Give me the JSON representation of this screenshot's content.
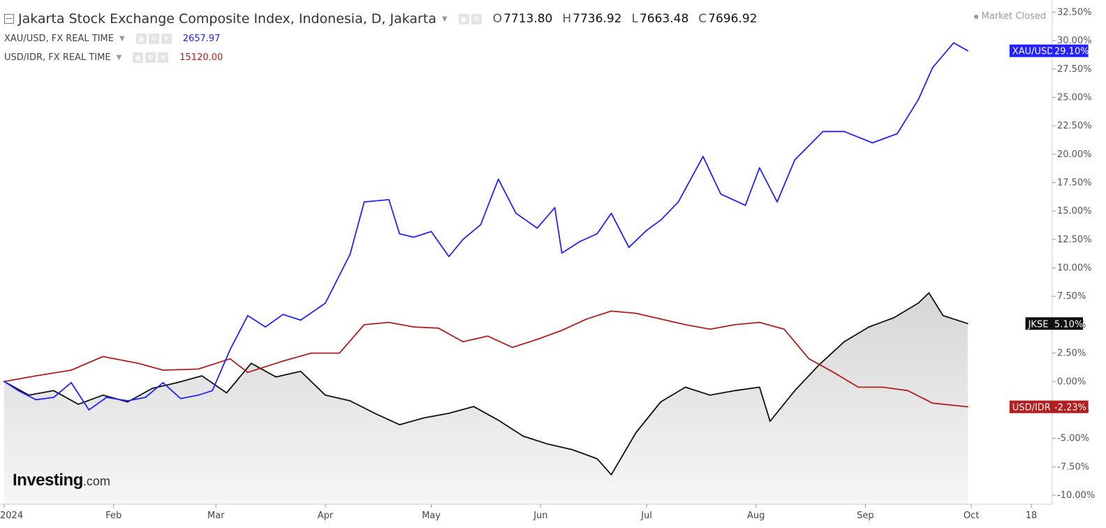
{
  "header": {
    "title": "Jakarta Stock Exchange Composite Index, Indonesia, D, Jakarta",
    "ohlc": [
      {
        "label": "O",
        "value": "7713.80"
      },
      {
        "label": "H",
        "value": "7736.92"
      },
      {
        "label": "L",
        "value": "7663.48"
      },
      {
        "label": "C",
        "value": "7696.92"
      }
    ],
    "market_status": "Market Closed",
    "overlays": [
      {
        "name": "XAU/USD, FX REAL TIME",
        "value": "2657.97",
        "color": "#2222ff"
      },
      {
        "name": "USD/IDR, FX REAL TIME",
        "value": "15120.00",
        "color": "#b01e1e"
      }
    ]
  },
  "logo": {
    "main": "Investing",
    "suffix": ".com"
  },
  "chart_data": {
    "type": "line",
    "y_unit": "%",
    "ylim": [
      -10.8,
      33.2
    ],
    "y_ticks": [
      32.5,
      30.0,
      27.5,
      25.0,
      22.5,
      20.0,
      17.5,
      15.0,
      12.5,
      10.0,
      7.5,
      5.0,
      2.5,
      0.0,
      -2.5,
      -5.0,
      -7.5,
      -10.0
    ],
    "y_tick_labels": [
      "32.50%",
      "30.00%",
      "27.50%",
      "25.00%",
      "22.50%",
      "20.00%",
      "17.50%",
      "15.00%",
      "12.50%",
      "10.00%",
      "7.50%",
      "5.00%",
      "2.50%",
      "0.00%",
      "-2.50%",
      "-5.00%",
      "-7.50%",
      "-10.00%"
    ],
    "x_ticks": [
      {
        "label": "2024",
        "date": "2024-01-01"
      },
      {
        "label": "Feb",
        "date": "2024-02-01"
      },
      {
        "label": "Mar",
        "date": "2024-03-01"
      },
      {
        "label": "Apr",
        "date": "2024-04-01"
      },
      {
        "label": "May",
        "date": "2024-05-01"
      },
      {
        "label": "Jun",
        "date": "2024-06-01"
      },
      {
        "label": "Jul",
        "date": "2024-07-01"
      },
      {
        "label": "Aug",
        "date": "2024-08-01"
      },
      {
        "label": "Sep",
        "date": "2024-09-01"
      },
      {
        "label": "Oct",
        "date": "2024-10-01"
      },
      {
        "label": "18",
        "date": "2024-10-18"
      }
    ],
    "grid": false,
    "series": [
      {
        "name": "XAU/USD",
        "color": "#2222ff",
        "last_label": "29.10%",
        "points": [
          [
            "2024-01-01",
            0.0
          ],
          [
            "2024-01-05",
            -0.8
          ],
          [
            "2024-01-10",
            -1.6
          ],
          [
            "2024-01-15",
            -1.4
          ],
          [
            "2024-01-20",
            -0.1
          ],
          [
            "2024-01-25",
            -2.5
          ],
          [
            "2024-01-30",
            -1.4
          ],
          [
            "2024-02-05",
            -1.7
          ],
          [
            "2024-02-10",
            -1.4
          ],
          [
            "2024-02-15",
            -0.1
          ],
          [
            "2024-02-20",
            -1.5
          ],
          [
            "2024-02-25",
            -1.2
          ],
          [
            "2024-02-29",
            -0.8
          ],
          [
            "2024-03-05",
            2.8
          ],
          [
            "2024-03-10",
            5.8
          ],
          [
            "2024-03-15",
            4.8
          ],
          [
            "2024-03-20",
            5.9
          ],
          [
            "2024-03-25",
            5.4
          ],
          [
            "2024-04-01",
            6.9
          ],
          [
            "2024-04-08",
            11.2
          ],
          [
            "2024-04-12",
            15.8
          ],
          [
            "2024-04-19",
            16.0
          ],
          [
            "2024-04-22",
            13.0
          ],
          [
            "2024-04-26",
            12.7
          ],
          [
            "2024-05-01",
            13.2
          ],
          [
            "2024-05-06",
            11.0
          ],
          [
            "2024-05-10",
            12.5
          ],
          [
            "2024-05-15",
            13.8
          ],
          [
            "2024-05-20",
            17.8
          ],
          [
            "2024-05-25",
            14.8
          ],
          [
            "2024-05-31",
            13.5
          ],
          [
            "2024-06-05",
            15.3
          ],
          [
            "2024-06-07",
            11.3
          ],
          [
            "2024-06-12",
            12.3
          ],
          [
            "2024-06-17",
            13.0
          ],
          [
            "2024-06-21",
            14.8
          ],
          [
            "2024-06-26",
            11.8
          ],
          [
            "2024-07-01",
            13.3
          ],
          [
            "2024-07-05",
            14.2
          ],
          [
            "2024-07-10",
            15.8
          ],
          [
            "2024-07-17",
            19.8
          ],
          [
            "2024-07-22",
            16.5
          ],
          [
            "2024-07-29",
            15.5
          ],
          [
            "2024-08-02",
            18.8
          ],
          [
            "2024-08-07",
            15.8
          ],
          [
            "2024-08-12",
            19.5
          ],
          [
            "2024-08-20",
            22.0
          ],
          [
            "2024-08-26",
            22.0
          ],
          [
            "2024-09-03",
            21.0
          ],
          [
            "2024-09-10",
            21.8
          ],
          [
            "2024-09-16",
            24.8
          ],
          [
            "2024-09-20",
            27.6
          ],
          [
            "2024-09-26",
            29.8
          ],
          [
            "2024-09-30",
            29.1
          ]
        ]
      },
      {
        "name": "USD/IDR",
        "color": "#b01e1e",
        "last_label": "-2.23%",
        "points": [
          [
            "2024-01-01",
            0.0
          ],
          [
            "2024-01-10",
            0.5
          ],
          [
            "2024-01-20",
            1.0
          ],
          [
            "2024-01-29",
            2.2
          ],
          [
            "2024-02-08",
            1.6
          ],
          [
            "2024-02-15",
            1.0
          ],
          [
            "2024-02-25",
            1.1
          ],
          [
            "2024-03-05",
            2.0
          ],
          [
            "2024-03-10",
            0.8
          ],
          [
            "2024-03-20",
            1.8
          ],
          [
            "2024-03-28",
            2.5
          ],
          [
            "2024-04-05",
            2.5
          ],
          [
            "2024-04-12",
            5.0
          ],
          [
            "2024-04-19",
            5.2
          ],
          [
            "2024-04-26",
            4.8
          ],
          [
            "2024-05-03",
            4.7
          ],
          [
            "2024-05-10",
            3.5
          ],
          [
            "2024-05-17",
            4.0
          ],
          [
            "2024-05-24",
            3.0
          ],
          [
            "2024-05-31",
            3.7
          ],
          [
            "2024-06-07",
            4.5
          ],
          [
            "2024-06-14",
            5.5
          ],
          [
            "2024-06-21",
            6.2
          ],
          [
            "2024-06-28",
            6.0
          ],
          [
            "2024-07-05",
            5.5
          ],
          [
            "2024-07-12",
            5.0
          ],
          [
            "2024-07-19",
            4.6
          ],
          [
            "2024-07-26",
            5.0
          ],
          [
            "2024-08-02",
            5.2
          ],
          [
            "2024-08-09",
            4.6
          ],
          [
            "2024-08-16",
            2.0
          ],
          [
            "2024-08-23",
            0.8
          ],
          [
            "2024-08-30",
            -0.5
          ],
          [
            "2024-09-06",
            -0.5
          ],
          [
            "2024-09-13",
            -0.8
          ],
          [
            "2024-09-20",
            -1.9
          ],
          [
            "2024-09-30",
            -2.23
          ]
        ]
      },
      {
        "name": "JKSE",
        "color": "#111111",
        "fill": true,
        "last_label": "5.10%",
        "points": [
          [
            "2024-01-01",
            0.0
          ],
          [
            "2024-01-08",
            -1.2
          ],
          [
            "2024-01-15",
            -0.8
          ],
          [
            "2024-01-22",
            -2.0
          ],
          [
            "2024-01-29",
            -1.2
          ],
          [
            "2024-02-05",
            -1.8
          ],
          [
            "2024-02-12",
            -0.6
          ],
          [
            "2024-02-19",
            -0.1
          ],
          [
            "2024-02-26",
            0.5
          ],
          [
            "2024-03-04",
            -1.0
          ],
          [
            "2024-03-11",
            1.6
          ],
          [
            "2024-03-18",
            0.4
          ],
          [
            "2024-03-25",
            0.9
          ],
          [
            "2024-04-01",
            -1.2
          ],
          [
            "2024-04-08",
            -1.7
          ],
          [
            "2024-04-15",
            -2.8
          ],
          [
            "2024-04-22",
            -3.8
          ],
          [
            "2024-04-29",
            -3.2
          ],
          [
            "2024-05-06",
            -2.8
          ],
          [
            "2024-05-13",
            -2.2
          ],
          [
            "2024-05-20",
            -3.4
          ],
          [
            "2024-05-27",
            -4.8
          ],
          [
            "2024-06-03",
            -5.5
          ],
          [
            "2024-06-10",
            -6.0
          ],
          [
            "2024-06-17",
            -6.8
          ],
          [
            "2024-06-21",
            -8.2
          ],
          [
            "2024-06-28",
            -4.5
          ],
          [
            "2024-07-05",
            -1.8
          ],
          [
            "2024-07-12",
            -0.5
          ],
          [
            "2024-07-19",
            -1.2
          ],
          [
            "2024-07-26",
            -0.8
          ],
          [
            "2024-08-02",
            -0.5
          ],
          [
            "2024-08-05",
            -3.5
          ],
          [
            "2024-08-12",
            -0.8
          ],
          [
            "2024-08-19",
            1.5
          ],
          [
            "2024-08-26",
            3.5
          ],
          [
            "2024-09-02",
            4.8
          ],
          [
            "2024-09-09",
            5.6
          ],
          [
            "2024-09-16",
            6.9
          ],
          [
            "2024-09-19",
            7.8
          ],
          [
            "2024-09-23",
            5.8
          ],
          [
            "2024-09-30",
            5.1
          ]
        ]
      }
    ]
  }
}
